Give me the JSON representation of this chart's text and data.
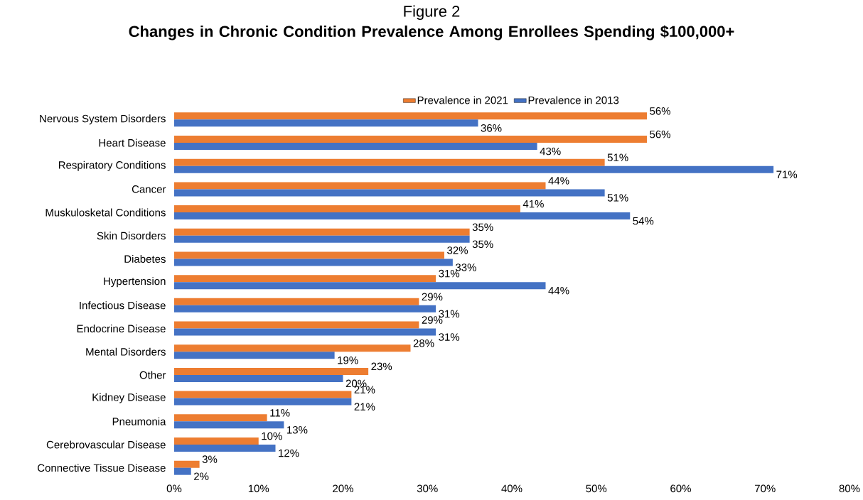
{
  "chart_data": {
    "type": "bar",
    "orientation": "horizontal",
    "title": "Figure 2",
    "subtitle": "Changes in Chronic Condition Prevalence Among Enrollees Spending $100,000+",
    "categories": [
      "Nervous System Disorders",
      "Heart Disease",
      "Respiratory Conditions",
      "Cancer",
      "Muskulosketal Conditions",
      "Skin Disorders",
      "Diabetes",
      "Hypertension",
      "Infectious Disease",
      "Endocrine Disease",
      "Mental Disorders",
      "Other",
      "Kidney Disease",
      "Pneumonia",
      "Cerebrovascular Disease",
      "Connective Tissue Disease"
    ],
    "series": [
      {
        "name": "Prevalence in 2021",
        "color": "#ed7d31",
        "values": [
          56,
          56,
          51,
          44,
          41,
          35,
          32,
          31,
          29,
          29,
          28,
          23,
          21,
          11,
          10,
          3
        ],
        "value_labels": [
          "56%",
          "56%",
          "51%",
          "44%",
          "41%",
          "35%",
          "32%",
          "31%",
          "29%",
          "29%",
          "28%",
          "23%",
          "21%",
          "11%",
          "10%",
          "3%"
        ]
      },
      {
        "name": "Prevalence in 2013",
        "color": "#4472c4",
        "values": [
          36,
          43,
          71,
          51,
          54,
          35,
          33,
          44,
          31,
          31,
          19,
          20,
          21,
          13,
          12,
          2
        ],
        "value_labels": [
          "36%",
          "43%",
          "71%",
          "51%",
          "54%",
          "35%",
          "33%",
          "44%",
          "31%",
          "31%",
          "19%",
          "20%",
          "21%",
          "13%",
          "12%",
          "2%"
        ]
      }
    ],
    "xlim": [
      0,
      80
    ],
    "xticks": [
      {
        "value": 0,
        "label": "0%"
      },
      {
        "value": 10,
        "label": "10%"
      },
      {
        "value": 20,
        "label": "20%"
      },
      {
        "value": 30,
        "label": "30%"
      },
      {
        "value": 40,
        "label": "40%"
      },
      {
        "value": 50,
        "label": "50%"
      },
      {
        "value": 60,
        "label": "60%"
      },
      {
        "value": 70,
        "label": "70%"
      },
      {
        "value": 80,
        "label": "80%"
      }
    ],
    "legend": "top"
  }
}
